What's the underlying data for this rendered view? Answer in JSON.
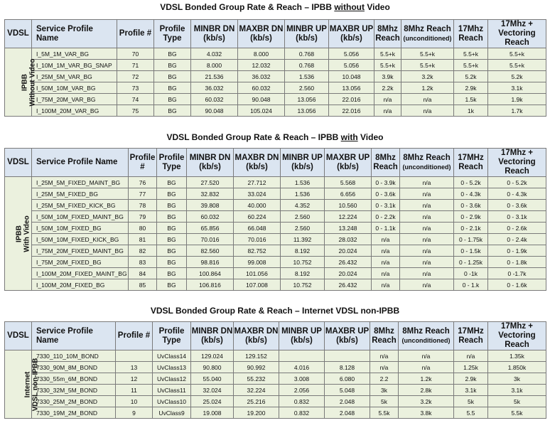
{
  "sections": [
    {
      "title_pre": "VDSL Bonded Group Rate & Reach – IPBB ",
      "title_under": "without",
      "title_post": " Video",
      "side_line1": "IPBB",
      "side_line2": "Without Video",
      "headers": {
        "vdsl": "VDSL",
        "service": "Service Profile Name",
        "profile": "Profile #",
        "ptype_1": "Profile",
        "ptype_2": "Type",
        "minbr_dn_1": "MINBR DN",
        "minbr_dn_2": "(kb/s)",
        "maxbr_dn_1": "MAXBR DN",
        "maxbr_dn_2": "(kb/s)",
        "minbr_up_1": "MINBR UP",
        "minbr_up_2": "(kb/s)",
        "maxbr_up_1": "MAXBR UP",
        "maxbr_up_2": "(kb/s)",
        "r8_1": "8Mhz",
        "r8_2": "Reach",
        "r8u_1": "8Mhz Reach",
        "r8u_2": "(unconditioned)",
        "r17_1": "17Mhz",
        "r17_2": "Reach",
        "r17v_1": "17Mhz +",
        "r17v_2": "Vectoring Reach"
      },
      "rows": [
        [
          "I_5M_1M_VAR_BG",
          "70",
          "BG",
          "4.032",
          "8.000",
          "0.768",
          "5.056",
          "5.5+k",
          "5.5+k",
          "5.5+k",
          "5.5+k"
        ],
        [
          "I_10M_1M_VAR_BG_SNAP",
          "71",
          "BG",
          "8.000",
          "12.032",
          "0.768",
          "5.056",
          "5.5+k",
          "5.5+k",
          "5.5+k",
          "5.5+k"
        ],
        [
          "I_25M_5M_VAR_BG",
          "72",
          "BG",
          "21.536",
          "36.032",
          "1.536",
          "10.048",
          "3.9k",
          "3.2k",
          "5.2k",
          "5.2k"
        ],
        [
          "I_50M_10M_VAR_BG",
          "73",
          "BG",
          "36.032",
          "60.032",
          "2.560",
          "13.056",
          "2.2k",
          "1.2k",
          "2.9k",
          "3.1k"
        ],
        [
          "I_75M_20M_VAR_BG",
          "74",
          "BG",
          "60.032",
          "90.048",
          "13.056",
          "22.016",
          "n/a",
          "n/a",
          "1.5k",
          "1.9k"
        ],
        [
          "I_100M_20M_VAR_BG",
          "75",
          "BG",
          "90.048",
          "105.024",
          "13.056",
          "22.016",
          "n/a",
          "n/a",
          "1k",
          "1.7k"
        ]
      ]
    },
    {
      "title_pre": "VDSL Bonded Group Rate & Reach – IPBB ",
      "title_under": "with",
      "title_post": " Video",
      "side_line1": "IPBB",
      "side_line2": "With Video",
      "headers": {
        "vdsl": "VDSL",
        "service": "Service Profile Name",
        "profile_1": "Profile",
        "profile_2": "#",
        "ptype_1": "Profile",
        "ptype_2": "Type",
        "minbr_dn_1": "MINBR DN",
        "minbr_dn_2": "(kb/s)",
        "maxbr_dn_1": "MAXBR DN",
        "maxbr_dn_2": "(kb/s)",
        "minbr_up_1": "MINBR UP",
        "minbr_up_2": "(kb/s)",
        "maxbr_up_1": "MAXBR UP",
        "maxbr_up_2": "(kb/s)",
        "r8_1": "8Mhz",
        "r8_2": "Reach",
        "r8u_1": "8Mhz Reach",
        "r8u_2": "(unconditioned)",
        "r17_1": "17MHz",
        "r17_2": "Reach",
        "r17v_1": "17Mhz +",
        "r17v_2": "Vectoring Reach"
      },
      "rows": [
        [
          "I_25M_5M_FIXED_MAINT_BG",
          "76",
          "BG",
          "27.520",
          "27.712",
          "1.536",
          "5.568",
          "0 - 3.9k",
          "n/a",
          "0 - 5.2k",
          "0 - 5.2k"
        ],
        [
          "I_25M_5M_FIXED_BG",
          "77",
          "BG",
          "32.832",
          "33.024",
          "1.536",
          "6.656",
          "0 - 3.6k",
          "n/a",
          "0 - 4.3k",
          "0 - 4.3k"
        ],
        [
          "I_25M_5M_FIXED_KICK_BG",
          "78",
          "BG",
          "39.808",
          "40.000",
          "4.352",
          "10.560",
          "0 - 3.1k",
          "n/a",
          "0 - 3.6k",
          "0 - 3.6k"
        ],
        [
          "I_50M_10M_FIXED_MAINT_BG",
          "79",
          "BG",
          "60.032",
          "60.224",
          "2.560",
          "12.224",
          "0 - 2.2k",
          "n/a",
          "0 - 2.9k",
          "0 - 3.1k"
        ],
        [
          "I_50M_10M_FIXED_BG",
          "80",
          "BG",
          "65.856",
          "66.048",
          "2.560",
          "13.248",
          "0 - 1.1k",
          "n/a",
          "0 - 2.1k",
          "0 - 2.6k"
        ],
        [
          "I_50M_10M_FIXED_KICK_BG",
          "81",
          "BG",
          "70.016",
          "70.016",
          "11.392",
          "28.032",
          "n/a",
          "n/a",
          "0 - 1.75k",
          "0 - 2.4k"
        ],
        [
          "I_75M_20M_FIXED_MAINT_BG",
          "82",
          "BG",
          "82.560",
          "82.752",
          "8.192",
          "20.024",
          "n/a",
          "n/a",
          "0 - 1.5k",
          "0 - 1.9k"
        ],
        [
          "I_75M_20M_FIXED_BG",
          "83",
          "BG",
          "98.816",
          "99.008",
          "10.752",
          "26.432",
          "n/a",
          "n/a",
          "0 - 1.25k",
          "0 - 1.8k"
        ],
        [
          "I_100M_20M_FIXED_MAINT_BG",
          "84",
          "BG",
          "100.864",
          "101.056",
          "8.192",
          "20.024",
          "n/a",
          "n/a",
          "0 -1k",
          "0 -1.7k"
        ],
        [
          "I_100M_20M_FIXED_BG",
          "85",
          "BG",
          "106.816",
          "107.008",
          "10.752",
          "26.432",
          "n/a",
          "n/a",
          "0 - 1.k",
          "0 - 1.6k"
        ]
      ]
    },
    {
      "title_pre": "VDSL Bonded Group Rate & Reach – Internet VDSL non-IPBB",
      "title_under": "",
      "title_post": "",
      "side_line1": "Internet",
      "side_line2": "VDSL non-IPBB",
      "headers": {
        "vdsl": "VDSL",
        "service": "Service Profile Name",
        "profile": "Profile #",
        "ptype_1": "Profile",
        "ptype_2": "Type",
        "minbr_dn_1": "MINBR DN",
        "minbr_dn_2": "(kb/s)",
        "maxbr_dn_1": "MAXBR DN",
        "maxbr_dn_2": "(kb/s)",
        "minbr_up_1": "MINBR UP",
        "minbr_up_2": "(kb/s)",
        "maxbr_up_1": "MAXBR UP",
        "maxbr_up_2": "(kb/s)",
        "r8_1": "8Mhz",
        "r8_2": "Reach",
        "r8u_1": "8Mhz Reach",
        "r8u_2": "(unconditioned)",
        "r17_1": "17MHz",
        "r17_2": "Reach",
        "r17v_1": "17Mhz +",
        "r17v_2": "Vectoring Reach"
      },
      "rows": [
        [
          "7330_110_10M_BOND",
          "",
          "UvClass14",
          "129.024",
          "129.152",
          "",
          "",
          "n/a",
          "n/a",
          "n/a",
          "1.35k"
        ],
        [
          "7330_90M_8M_BOND",
          "13",
          "UvClass13",
          "90.800",
          "90.992",
          "4.016",
          "8.128",
          "n/a",
          "n/a",
          "1.25k",
          "1.850k"
        ],
        [
          "7330_55m_6M_BOND",
          "12",
          "UvClass12",
          "55.040",
          "55.232",
          "3.008",
          "6.080",
          "2.2",
          "1.2k",
          "2.9k",
          "3k"
        ],
        [
          "7330_32M_5M_BOND",
          "11",
          "UvClass11",
          "32.024",
          "32.224",
          "2.056",
          "5.048",
          "3k",
          "2.8k",
          "3.1k",
          "3.1k"
        ],
        [
          "7330_25M_2M_BOND",
          "10",
          "UvClass10",
          "25.024",
          "25.216",
          "0.832",
          "2.048",
          "5k",
          "3.2k",
          "5k",
          "5k"
        ],
        [
          "7330_19M_2M_BOND",
          "9",
          "UvClass9",
          "19.008",
          "19.200",
          "0.832",
          "2.048",
          "5.5k",
          "3.8k",
          "5.5",
          "5.5k"
        ]
      ]
    }
  ]
}
